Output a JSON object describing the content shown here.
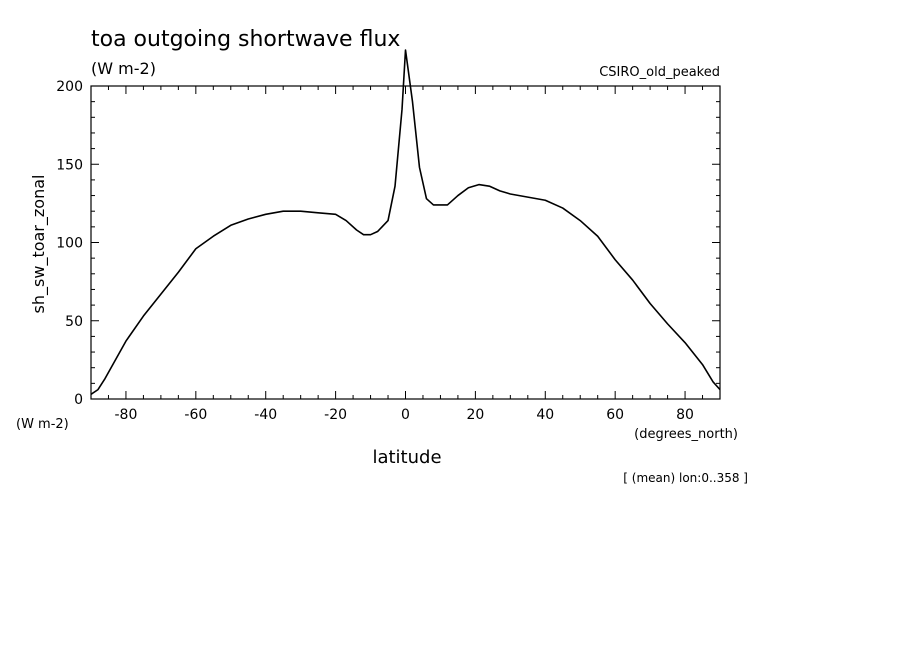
{
  "chart_data": {
    "type": "line",
    "title": "toa outgoing shortwave flux",
    "subtitle": "(W m-2)",
    "label_right": "CSIRO_old_peaked",
    "ylabel": "sh_sw_toar_zonal",
    "y_units": "(W m-2)",
    "xlabel": "latitude",
    "x_units": "(degrees_north)",
    "footnote": "[ (mean) lon:0..358 ]",
    "xlim": [
      -90,
      90
    ],
    "ylim": [
      0,
      200
    ],
    "x_ticks": [
      -80,
      -60,
      -40,
      -20,
      0,
      20,
      40,
      60,
      80
    ],
    "y_ticks": [
      0,
      50,
      100,
      150,
      200
    ],
    "grid": false,
    "legend": "none",
    "line_color": "#000000",
    "series": [
      {
        "x": [
          -90,
          -88,
          -86,
          -80,
          -75,
          -70,
          -65,
          -60,
          -55,
          -50,
          -45,
          -40,
          -35,
          -30,
          -25,
          -20,
          -17,
          -14,
          -12,
          -10,
          -8,
          -5,
          -3,
          -1,
          0,
          2,
          4,
          6,
          8,
          12,
          15,
          18,
          21,
          24,
          27,
          30,
          35,
          40,
          45,
          50,
          55,
          60,
          65,
          70,
          75,
          80,
          85,
          88,
          90
        ],
        "y": [
          3,
          6,
          13,
          37,
          53,
          67,
          81,
          96,
          104,
          111,
          115,
          118,
          120,
          120,
          119,
          118,
          114,
          108,
          105,
          105,
          107,
          114,
          136,
          185,
          223,
          190,
          148,
          128,
          124,
          124,
          130,
          135,
          137,
          136,
          133,
          131,
          129,
          127,
          122,
          114,
          104,
          89,
          76,
          61,
          48,
          36,
          22,
          11,
          6
        ]
      }
    ]
  }
}
